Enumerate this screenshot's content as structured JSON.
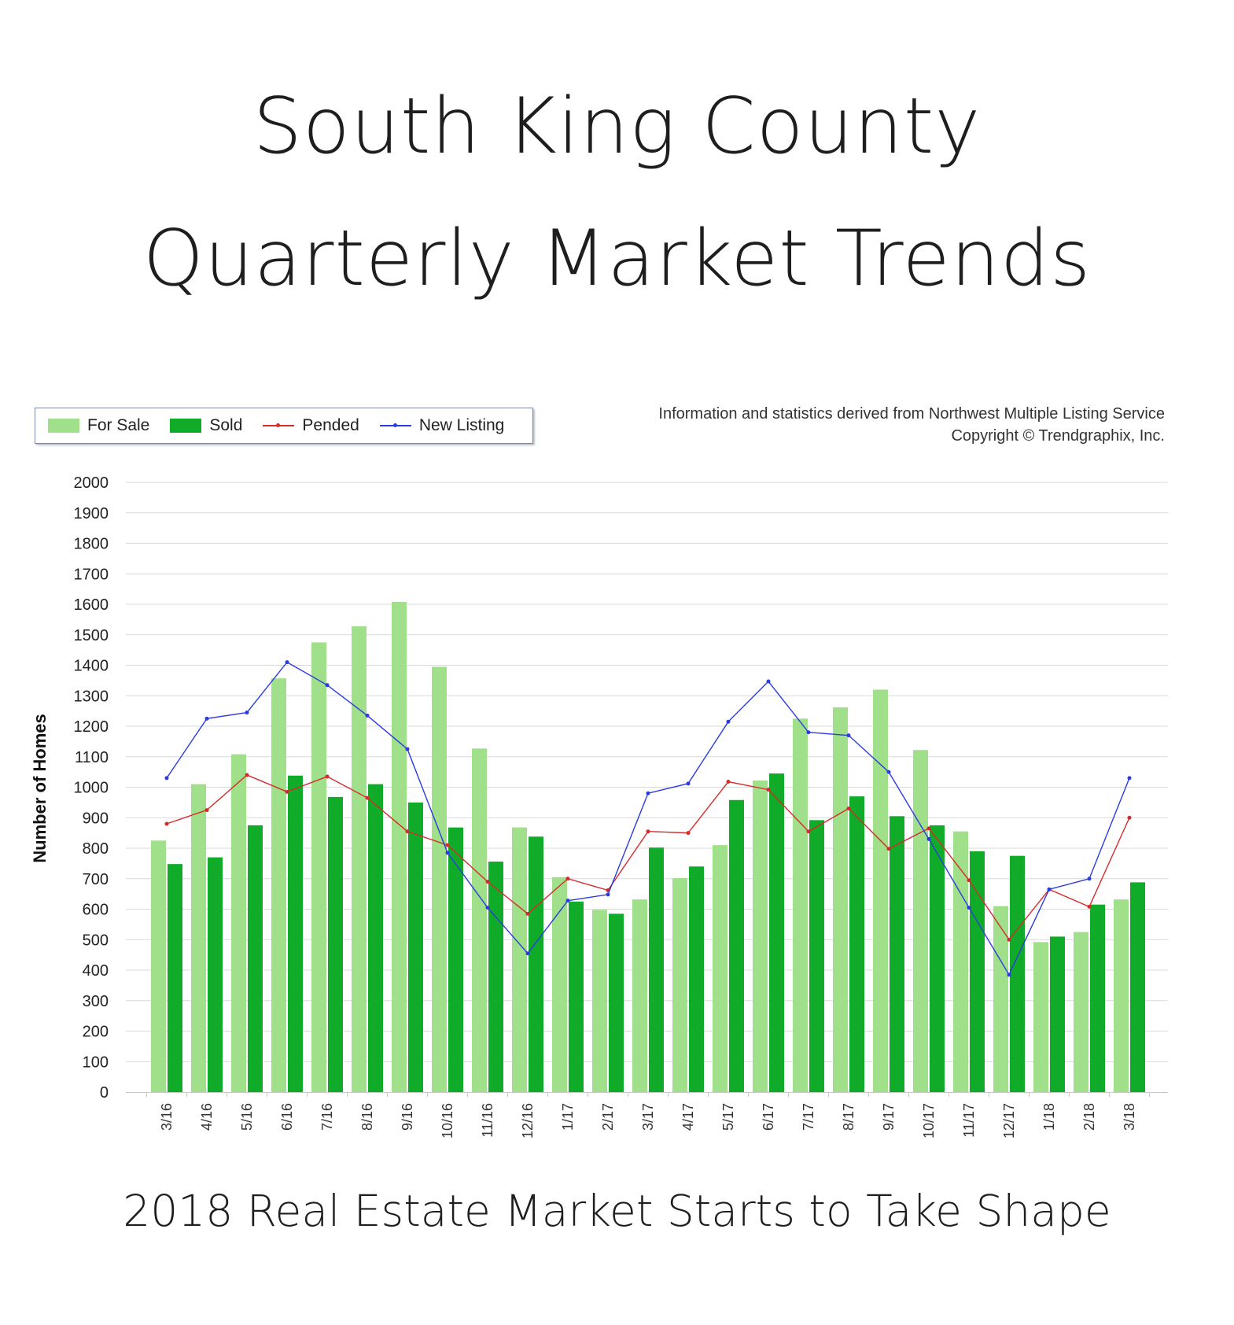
{
  "header": {
    "title_line1": "South King County",
    "title_line2": "Quarterly Market Trends",
    "subtitle": "2018 Real Estate Market Starts to Take Shape"
  },
  "source": {
    "line1": "Information and statistics derived from Northwest Multiple Listing Service",
    "line2": "Copyright © Trendgraphix, Inc."
  },
  "chart_data": {
    "type": "bar",
    "ylabel": "Number of Homes",
    "xlabel": "",
    "ylim": [
      0,
      2000
    ],
    "yticks": [
      0,
      100,
      200,
      300,
      400,
      500,
      600,
      700,
      800,
      900,
      1000,
      1100,
      1200,
      1300,
      1400,
      1500,
      1600,
      1700,
      1800,
      1900,
      2000
    ],
    "grid": true,
    "legend_position": "top-left",
    "categories": [
      "3/16",
      "4/16",
      "5/16",
      "6/16",
      "7/16",
      "8/16",
      "9/16",
      "10/16",
      "11/16",
      "12/16",
      "1/17",
      "2/17",
      "3/17",
      "4/17",
      "5/17",
      "6/17",
      "7/17",
      "8/17",
      "9/17",
      "10/17",
      "11/17",
      "12/17",
      "1/18",
      "2/18",
      "3/18"
    ],
    "series": [
      {
        "name": "For Sale",
        "type": "bar",
        "color": "#a1e08a",
        "values": [
          825,
          1010,
          1108,
          1357,
          1475,
          1528,
          1608,
          1395,
          1127,
          868,
          705,
          598,
          632,
          702,
          810,
          1022,
          1225,
          1262,
          1320,
          1122,
          855,
          610,
          492,
          525,
          632
        ]
      },
      {
        "name": "Sold",
        "type": "bar",
        "color": "#10ab28",
        "values": [
          748,
          770,
          875,
          1038,
          968,
          1010,
          950,
          868,
          756,
          838,
          625,
          585,
          802,
          740,
          958,
          1045,
          892,
          970,
          905,
          875,
          790,
          775,
          510,
          615,
          688
        ]
      },
      {
        "name": "Pended",
        "type": "line",
        "color": "#d42b2b",
        "values": [
          880,
          925,
          1040,
          985,
          1035,
          965,
          855,
          810,
          690,
          585,
          700,
          662,
          855,
          850,
          1018,
          992,
          855,
          930,
          798,
          865,
          695,
          500,
          665,
          608,
          900
        ]
      },
      {
        "name": "New Listing",
        "type": "line",
        "color": "#2b3be0",
        "values": [
          1030,
          1225,
          1245,
          1410,
          1335,
          1235,
          1125,
          785,
          605,
          455,
          628,
          648,
          980,
          1012,
          1215,
          1347,
          1180,
          1170,
          1050,
          830,
          605,
          385,
          665,
          700,
          1030
        ]
      }
    ]
  }
}
